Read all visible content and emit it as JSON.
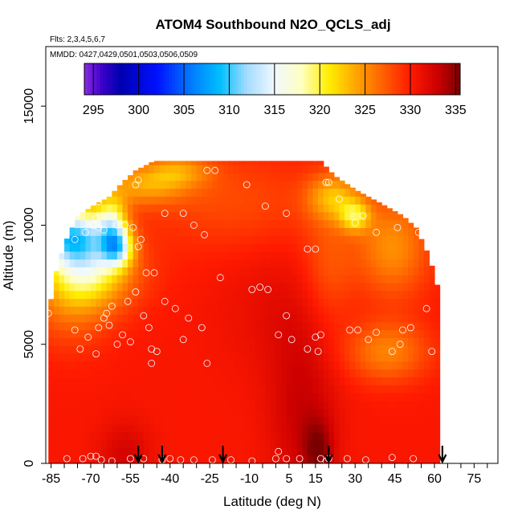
{
  "chart_data": {
    "type": "heatmap",
    "title": "ATOM4 Southbound N2O_QCLS_adj",
    "flights_label": "Flts: 2,3,4,5,6,7",
    "dates_label": "MMDD: 0427,0429,0501,0503,0506,0509",
    "xlabel": "Latitude (deg N)",
    "ylabel": "Altitude (m)",
    "xlim": [
      -87,
      84
    ],
    "ylim": [
      0,
      17500
    ],
    "xticks": [
      -85,
      -70,
      -55,
      -40,
      -25,
      -10,
      5,
      15,
      30,
      45,
      60,
      75
    ],
    "xtick_labels": [
      "-85",
      "-70",
      "-55",
      "-40",
      "-25",
      "-10",
      "5",
      "15",
      "30",
      "45",
      "60",
      "75"
    ],
    "yticks": [
      0,
      5000,
      10000,
      15000
    ],
    "ytick_labels": [
      "0",
      "5000",
      "10000",
      "15000"
    ],
    "colorbar": {
      "range": [
        294,
        335.5
      ],
      "ticks": [
        295,
        300,
        305,
        310,
        315,
        320,
        325,
        330,
        335
      ],
      "tick_labels": [
        "295",
        "300",
        "305",
        "310",
        "315",
        "320",
        "325",
        "330",
        "335"
      ],
      "stops": [
        {
          "v": 294,
          "c": "#8a2be2"
        },
        {
          "v": 296,
          "c": "#3a00c8"
        },
        {
          "v": 298,
          "c": "#0000b0"
        },
        {
          "v": 302,
          "c": "#0010ff"
        },
        {
          "v": 306,
          "c": "#0080ff"
        },
        {
          "v": 309,
          "c": "#00bfff"
        },
        {
          "v": 312,
          "c": "#a6dcff"
        },
        {
          "v": 315,
          "c": "#f0f8ff"
        },
        {
          "v": 318,
          "c": "#ffffc0"
        },
        {
          "v": 321,
          "c": "#ffee00"
        },
        {
          "v": 324,
          "c": "#ffa500"
        },
        {
          "v": 327,
          "c": "#ff6000"
        },
        {
          "v": 330,
          "c": "#ff1a00"
        },
        {
          "v": 333,
          "c": "#cc0000"
        },
        {
          "v": 335.5,
          "c": "#7a0000"
        }
      ]
    },
    "field": {
      "lat_range": [
        -86,
        63
      ],
      "alt_range": [
        0,
        12700
      ],
      "background_value": 330.3,
      "envelope": [
        {
          "lat": -86,
          "top": 6100
        },
        {
          "lat": -84,
          "top": 7700
        },
        {
          "lat": -80,
          "top": 9200
        },
        {
          "lat": -75,
          "top": 10400
        },
        {
          "lat": -68,
          "top": 10900
        },
        {
          "lat": -63,
          "top": 11200
        },
        {
          "lat": -58,
          "top": 11800
        },
        {
          "lat": -53,
          "top": 12300
        },
        {
          "lat": -46,
          "top": 12700
        },
        {
          "lat": 17,
          "top": 12700
        },
        {
          "lat": 22,
          "top": 12100
        },
        {
          "lat": 30,
          "top": 11500
        },
        {
          "lat": 40,
          "top": 10900
        },
        {
          "lat": 48,
          "top": 10400
        },
        {
          "lat": 53,
          "top": 9900
        },
        {
          "lat": 58,
          "top": 8700
        },
        {
          "lat": 61,
          "top": 7500
        },
        {
          "lat": 62,
          "top": 6200
        },
        {
          "lat": 62,
          "top": 2000
        },
        {
          "lat": 61,
          "top": 0
        }
      ],
      "features": [
        {
          "lat": -80,
          "alt": 9600,
          "value": 318.5,
          "slat": 9,
          "salt": 750
        },
        {
          "lat": -73,
          "alt": 9200,
          "value": 321,
          "slat": 9,
          "salt": 1200
        },
        {
          "lat": -60,
          "alt": 9100,
          "value": 318,
          "slat": 4,
          "salt": 550
        },
        {
          "lat": -62,
          "alt": 10100,
          "value": 321.5,
          "slat": 4,
          "salt": 800
        },
        {
          "lat": -70,
          "alt": 8000,
          "value": 324,
          "slat": 13,
          "salt": 1100
        },
        {
          "lat": -78,
          "alt": 6800,
          "value": 327,
          "slat": 11,
          "salt": 1400
        },
        {
          "lat": -50,
          "alt": 11700,
          "value": 325,
          "slat": 12,
          "salt": 600
        },
        {
          "lat": -37,
          "alt": 12300,
          "value": 326,
          "slat": 9,
          "salt": 450
        },
        {
          "lat": 22,
          "alt": 11200,
          "value": 324,
          "slat": 7,
          "salt": 700
        },
        {
          "lat": 30,
          "alt": 10400,
          "value": 323,
          "slat": 4,
          "salt": 450
        },
        {
          "lat": 44,
          "alt": 9100,
          "value": 325,
          "slat": 10,
          "salt": 1500
        },
        {
          "lat": 20,
          "alt": 8200,
          "value": 327.5,
          "slat": 7,
          "salt": 1800
        },
        {
          "lat": 42,
          "alt": 4700,
          "value": 325.5,
          "slat": 11,
          "salt": 900
        },
        {
          "lat": -16,
          "alt": 11000,
          "value": 328,
          "slat": 25,
          "salt": 1500
        },
        {
          "lat": 10,
          "alt": 2200,
          "value": 333,
          "slat": 9,
          "salt": 2600
        },
        {
          "lat": 16,
          "alt": 600,
          "value": 334,
          "slat": 4,
          "salt": 900
        },
        {
          "lat": -57,
          "alt": 400,
          "value": 332.5,
          "slat": 7,
          "salt": 1000
        },
        {
          "lat": 2,
          "alt": 6500,
          "value": 331.5,
          "slat": 16,
          "salt": 2000
        }
      ],
      "sample_points": [
        {
          "lat": -86,
          "alt": 6300
        },
        {
          "lat": -76,
          "alt": 5600
        },
        {
          "lat": -74,
          "alt": 4800
        },
        {
          "lat": -71,
          "alt": 5300
        },
        {
          "lat": -68,
          "alt": 4600
        },
        {
          "lat": -67,
          "alt": 5700
        },
        {
          "lat": -65,
          "alt": 6100
        },
        {
          "lat": -63,
          "alt": 5800
        },
        {
          "lat": -62,
          "alt": 6600
        },
        {
          "lat": -64,
          "alt": 6300
        },
        {
          "lat": -60,
          "alt": 5000
        },
        {
          "lat": -58,
          "alt": 5400
        },
        {
          "lat": -55,
          "alt": 5100
        },
        {
          "lat": -56,
          "alt": 6800
        },
        {
          "lat": -53,
          "alt": 7200
        },
        {
          "lat": -50,
          "alt": 6200
        },
        {
          "lat": -48,
          "alt": 5700
        },
        {
          "lat": -47,
          "alt": 4800
        },
        {
          "lat": -45,
          "alt": 4700
        },
        {
          "lat": -47,
          "alt": 4200
        },
        {
          "lat": -42,
          "alt": 6800
        },
        {
          "lat": -38,
          "alt": 6500
        },
        {
          "lat": -35,
          "alt": 5200
        },
        {
          "lat": -33,
          "alt": 6100
        },
        {
          "lat": -28,
          "alt": 5700
        },
        {
          "lat": -26,
          "alt": 4200
        },
        {
          "lat": -21,
          "alt": 7800
        },
        {
          "lat": -9,
          "alt": 7300
        },
        {
          "lat": -6,
          "alt": 7400
        },
        {
          "lat": -3,
          "alt": 7300
        },
        {
          "lat": 1,
          "alt": 5400
        },
        {
          "lat": 6,
          "alt": 5200
        },
        {
          "lat": 4,
          "alt": 6200
        },
        {
          "lat": 12,
          "alt": 4800
        },
        {
          "lat": 15,
          "alt": 5300
        },
        {
          "lat": 17,
          "alt": 5400
        },
        {
          "lat": 16,
          "alt": 4700
        },
        {
          "lat": 28,
          "alt": 5600
        },
        {
          "lat": 31,
          "alt": 5600
        },
        {
          "lat": 35,
          "alt": 5200
        },
        {
          "lat": 38,
          "alt": 5500
        },
        {
          "lat": 44,
          "alt": 4700
        },
        {
          "lat": 47,
          "alt": 5000
        },
        {
          "lat": 48,
          "alt": 5600
        },
        {
          "lat": 51,
          "alt": 5700
        },
        {
          "lat": 57,
          "alt": 6500
        },
        {
          "lat": 59,
          "alt": 4700
        },
        {
          "lat": -76,
          "alt": 9400
        },
        {
          "lat": -72,
          "alt": 9700
        },
        {
          "lat": -68,
          "alt": 10300
        },
        {
          "lat": -67,
          "alt": 9900
        },
        {
          "lat": -65,
          "alt": 9800
        },
        {
          "lat": -60,
          "alt": 10000
        },
        {
          "lat": -57,
          "alt": 10000
        },
        {
          "lat": -54,
          "alt": 9900
        },
        {
          "lat": -52,
          "alt": 9100
        },
        {
          "lat": -51,
          "alt": 9400
        },
        {
          "lat": -49,
          "alt": 8000
        },
        {
          "lat": -46,
          "alt": 8000
        },
        {
          "lat": -42,
          "alt": 10500
        },
        {
          "lat": -35,
          "alt": 10500
        },
        {
          "lat": -31,
          "alt": 10000
        },
        {
          "lat": -27,
          "alt": 9600
        },
        {
          "lat": -4,
          "alt": 10800
        },
        {
          "lat": 4,
          "alt": 10500
        },
        {
          "lat": 12,
          "alt": 9000
        },
        {
          "lat": 15,
          "alt": 9000
        },
        {
          "lat": 19,
          "alt": 11800
        },
        {
          "lat": 24,
          "alt": 11100
        },
        {
          "lat": 30,
          "alt": 10100
        },
        {
          "lat": 33,
          "alt": 10400
        },
        {
          "lat": 38,
          "alt": 9700
        },
        {
          "lat": 46,
          "alt": 9900
        },
        {
          "lat": 54,
          "alt": 9700
        },
        {
          "lat": 61,
          "alt": 8600
        },
        {
          "lat": 62,
          "alt": 8400
        },
        {
          "lat": -53,
          "alt": 11700
        },
        {
          "lat": -52,
          "alt": 11900
        },
        {
          "lat": -64,
          "alt": 11700
        },
        {
          "lat": -67,
          "alt": 11000
        },
        {
          "lat": -69,
          "alt": 10000
        },
        {
          "lat": -26,
          "alt": 12300
        },
        {
          "lat": -23,
          "alt": 12300
        },
        {
          "lat": -11,
          "alt": 11700
        },
        {
          "lat": 20,
          "alt": 11800
        },
        {
          "lat": -79,
          "alt": 200
        },
        {
          "lat": -73,
          "alt": 200
        },
        {
          "lat": -70,
          "alt": 300
        },
        {
          "lat": -68,
          "alt": 300
        },
        {
          "lat": -66,
          "alt": 150
        },
        {
          "lat": -62,
          "alt": 100
        },
        {
          "lat": -55,
          "alt": 200
        },
        {
          "lat": -50,
          "alt": 200
        },
        {
          "lat": -43,
          "alt": 150
        },
        {
          "lat": -40,
          "alt": 200
        },
        {
          "lat": -36,
          "alt": 150
        },
        {
          "lat": -31,
          "alt": 150
        },
        {
          "lat": -24,
          "alt": 150
        },
        {
          "lat": -17,
          "alt": 150
        },
        {
          "lat": -9,
          "alt": 100
        },
        {
          "lat": 0,
          "alt": 200
        },
        {
          "lat": 4,
          "alt": 200
        },
        {
          "lat": 9,
          "alt": 200
        },
        {
          "lat": 17,
          "alt": 200
        },
        {
          "lat": 20,
          "alt": 200
        },
        {
          "lat": 27,
          "alt": 200
        },
        {
          "lat": 34,
          "alt": 150
        },
        {
          "lat": 44,
          "alt": 250
        },
        {
          "lat": 52,
          "alt": 200
        },
        {
          "lat": 1,
          "alt": 500
        },
        {
          "lat": 19,
          "alt": 100
        }
      ]
    },
    "arrows": [
      {
        "lat": -52,
        "label": ""
      },
      {
        "lat": -43,
        "label": ""
      },
      {
        "lat": -20,
        "label": ""
      },
      {
        "lat": 20,
        "label": ""
      },
      {
        "lat": 63,
        "label": ""
      }
    ]
  }
}
